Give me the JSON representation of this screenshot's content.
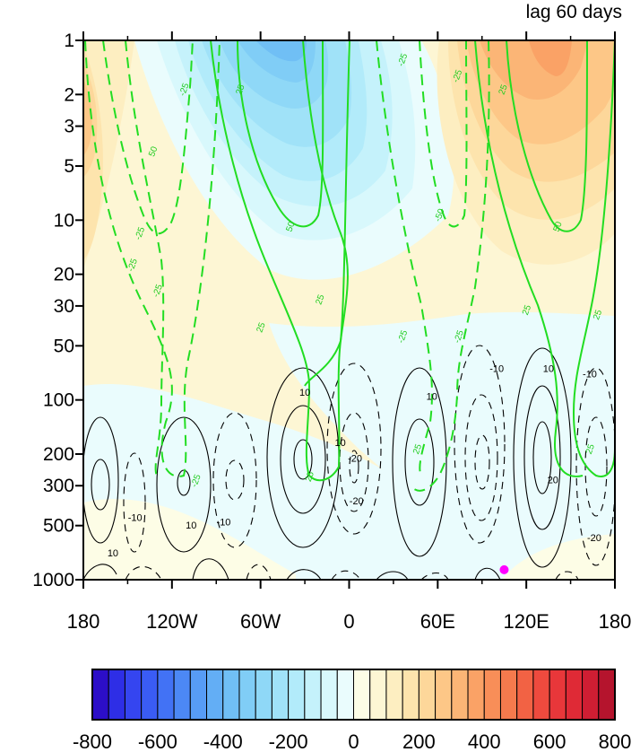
{
  "chart_data": {
    "type": "heatmap",
    "title": "lag 60 days",
    "x_ticks": [
      {
        "value": -180,
        "label": "180"
      },
      {
        "value": -120,
        "label": "120W"
      },
      {
        "value": -60,
        "label": "60W"
      },
      {
        "value": 0,
        "label": "0"
      },
      {
        "value": 60,
        "label": "60E"
      },
      {
        "value": 120,
        "label": "120E"
      },
      {
        "value": 180,
        "label": "180"
      }
    ],
    "y_ticks": [
      {
        "value": 1,
        "label": "1"
      },
      {
        "value": 2,
        "label": "2"
      },
      {
        "value": 3,
        "label": "3"
      },
      {
        "value": 5,
        "label": "5"
      },
      {
        "value": 10,
        "label": "10"
      },
      {
        "value": 20,
        "label": "20"
      },
      {
        "value": 30,
        "label": "30"
      },
      {
        "value": 50,
        "label": "50"
      },
      {
        "value": 100,
        "label": "100"
      },
      {
        "value": 200,
        "label": "200"
      },
      {
        "value": 300,
        "label": "300"
      },
      {
        "value": 500,
        "label": "500"
      },
      {
        "value": 1000,
        "label": "1000"
      }
    ],
    "xlim": [
      -180,
      180
    ],
    "ylim": [
      1,
      1000
    ],
    "y_scale": "log",
    "y_inverted": true,
    "grid": false,
    "colorbar": {
      "orientation": "horizontal",
      "placement": "bottom",
      "levels": [
        -800,
        -750,
        -700,
        -650,
        -600,
        -550,
        -500,
        -450,
        -400,
        -350,
        -300,
        -250,
        -200,
        -150,
        -100,
        -50,
        0,
        50,
        100,
        150,
        200,
        250,
        300,
        350,
        400,
        450,
        500,
        550,
        600,
        650,
        700,
        750,
        800
      ],
      "colors": [
        "#2c0ec8",
        "#2e2ee6",
        "#3545f0",
        "#3a5cf4",
        "#4272f5",
        "#4c88f5",
        "#579cf5",
        "#63aef5",
        "#70bff5",
        "#80cdf6",
        "#8fd8f7",
        "#a0e2f8",
        "#b2ebfa",
        "#c5f2fb",
        "#d8f8fc",
        "#eafcfd",
        "#fdfde6",
        "#fdf6d4",
        "#fdeec1",
        "#fde4ad",
        "#fdd79a",
        "#fdc787",
        "#fbb576",
        "#faa266",
        "#f88e58",
        "#f57a4d",
        "#f26244",
        "#ee4a3e",
        "#e8373a",
        "#df2a36",
        "#cf1e33",
        "#b5142d"
      ],
      "tick_labels": [
        "-800",
        "-600",
        "-400",
        "-200",
        "0",
        "200",
        "400",
        "600",
        "800"
      ],
      "tick_values": [
        -800,
        -600,
        -400,
        -200,
        0,
        200,
        400,
        600,
        800
      ]
    },
    "green_contour_labels": [
      {
        "text": "-25",
        "x": -140,
        "y": 12
      },
      {
        "text": "50",
        "x": -131,
        "y": 4.2
      },
      {
        "text": "-25",
        "x": -110,
        "y": 1.9
      },
      {
        "text": "-25",
        "x": -145,
        "y": 18
      },
      {
        "text": "-25",
        "x": -128,
        "y": 25
      },
      {
        "text": "25",
        "x": -72,
        "y": 1.9
      },
      {
        "text": "50",
        "x": -38,
        "y": 11
      },
      {
        "text": "25",
        "x": -18,
        "y": 28
      },
      {
        "text": "25",
        "x": -58,
        "y": 40
      },
      {
        "text": "-25",
        "x": 38,
        "y": 1.3
      },
      {
        "text": "-50",
        "x": 63,
        "y": 9.5
      },
      {
        "text": "-25",
        "x": 38,
        "y": 45
      },
      {
        "text": "-25",
        "x": 76,
        "y": 45
      },
      {
        "text": "-25",
        "x": 75,
        "y": 1.6
      },
      {
        "text": "25",
        "x": 106,
        "y": 1.9
      },
      {
        "text": "50",
        "x": 143,
        "y": 11
      },
      {
        "text": "25",
        "x": 122,
        "y": 32
      },
      {
        "text": "25",
        "x": 170,
        "y": 34
      },
      {
        "text": "-25",
        "x": -102,
        "y": 285
      },
      {
        "text": "25",
        "x": -25,
        "y": 270
      },
      {
        "text": "25",
        "x": 48,
        "y": 190
      },
      {
        "text": "25",
        "x": 165,
        "y": 190
      }
    ],
    "black_contour_labels": [
      {
        "text": "10",
        "x": -30,
        "y": 95
      },
      {
        "text": "10",
        "x": -6,
        "y": 180
      },
      {
        "text": "-20",
        "x": 4,
        "y": 220
      },
      {
        "text": "-20",
        "x": 5,
        "y": 380
      },
      {
        "text": "10",
        "x": 56,
        "y": 100
      },
      {
        "text": "-10",
        "x": 100,
        "y": 70
      },
      {
        "text": "10",
        "x": 135,
        "y": 70
      },
      {
        "text": "-10",
        "x": 163,
        "y": 75
      },
      {
        "text": "20",
        "x": 138,
        "y": 290
      },
      {
        "text": "-20",
        "x": 166,
        "y": 610
      },
      {
        "text": "-10",
        "x": -145,
        "y": 470
      },
      {
        "text": "-10",
        "x": -85,
        "y": 500
      },
      {
        "text": "10",
        "x": -107,
        "y": 520
      },
      {
        "text": "10",
        "x": -160,
        "y": 740
      }
    ],
    "marker": {
      "type": "point",
      "color": "#ff00ff",
      "x": 105,
      "y": 880
    }
  }
}
